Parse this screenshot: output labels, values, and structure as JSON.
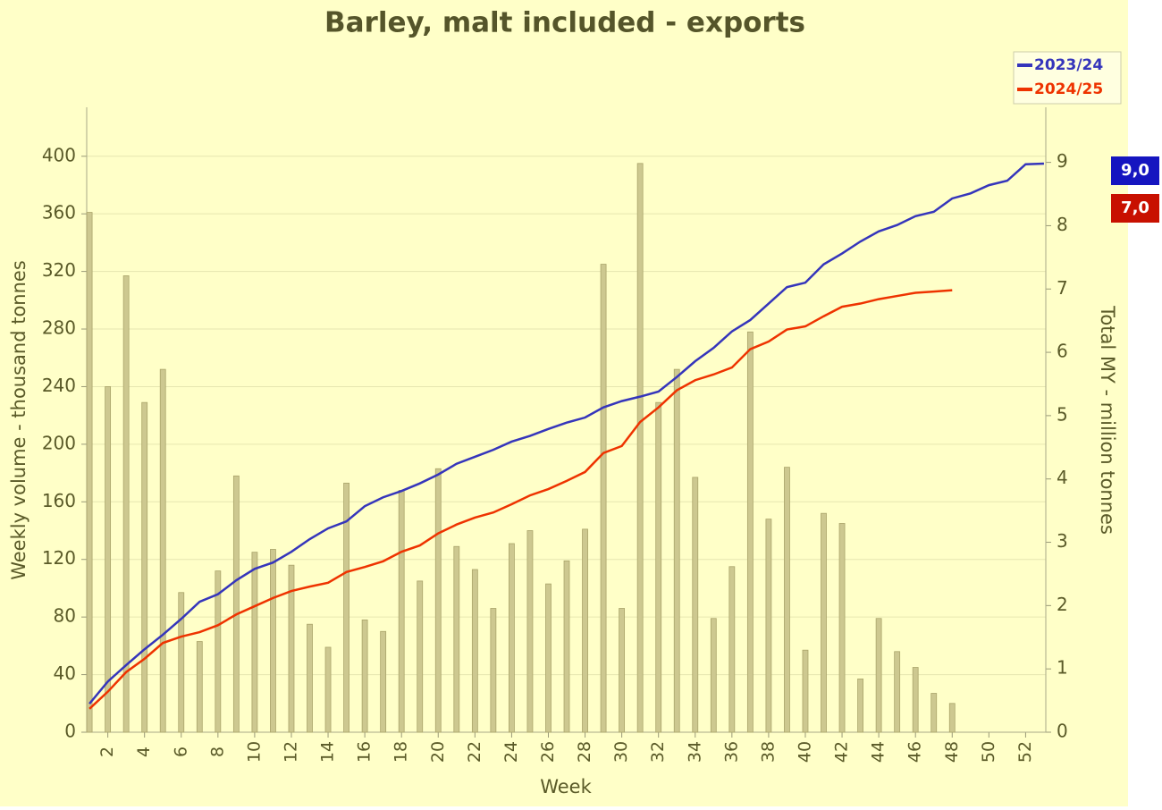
{
  "chart_data": {
    "type": "bar_line",
    "title": "Barley, malt included - exports",
    "xlabel": "Week",
    "ylabel": "Weekly volume - thousand tonnes",
    "y2label": "Total MY - million tonnes",
    "x": [
      1,
      2,
      3,
      4,
      5,
      6,
      7,
      8,
      9,
      10,
      11,
      12,
      13,
      14,
      15,
      16,
      17,
      18,
      19,
      20,
      21,
      22,
      23,
      24,
      25,
      26,
      27,
      28,
      29,
      30,
      31,
      32,
      33,
      34,
      35,
      36,
      37,
      38,
      39,
      40,
      41,
      42,
      43,
      44,
      45,
      46,
      47,
      48,
      49,
      50,
      51,
      52,
      53
    ],
    "xlim": [
      0.85,
      53.1
    ],
    "xticks": [
      2,
      4,
      6,
      8,
      10,
      12,
      14,
      16,
      18,
      20,
      22,
      24,
      26,
      28,
      30,
      32,
      34,
      36,
      38,
      40,
      42,
      44,
      46,
      48,
      50,
      52
    ],
    "ylim": [
      0,
      434
    ],
    "yticks": [
      0,
      40,
      80,
      120,
      160,
      200,
      240,
      280,
      320,
      360,
      400
    ],
    "y2lim": [
      0,
      9.87
    ],
    "y2ticks": [
      0,
      1,
      2,
      3,
      4,
      5,
      6,
      7,
      8,
      9
    ],
    "grid": true,
    "legend": "top-right",
    "bar_color": "#cdc890",
    "bar_values": [
      361,
      240,
      317,
      229,
      252,
      97,
      63,
      112,
      178,
      125,
      127,
      116,
      75,
      59,
      173,
      78,
      70,
      168,
      105,
      183,
      129,
      113,
      86,
      131,
      140,
      103,
      119,
      141,
      325,
      86,
      395,
      229,
      252,
      177,
      79,
      115,
      278,
      148,
      184,
      57,
      152,
      145,
      37,
      79,
      56,
      45,
      27,
      20,
      0,
      0,
      0,
      0,
      null
    ],
    "series": [
      {
        "name": "2023/24",
        "color": "#3535bb",
        "axis": "y2",
        "end_label": "9,0",
        "end_color": "#1515c0",
        "values": [
          0.45,
          0.8,
          1.06,
          1.31,
          1.54,
          1.79,
          2.06,
          2.18,
          2.4,
          2.58,
          2.68,
          2.85,
          3.05,
          3.22,
          3.33,
          3.57,
          3.71,
          3.81,
          3.93,
          4.07,
          4.24,
          4.35,
          4.46,
          4.59,
          4.68,
          4.79,
          4.89,
          4.97,
          5.13,
          5.23,
          5.3,
          5.38,
          5.61,
          5.86,
          6.07,
          6.33,
          6.51,
          6.77,
          7.03,
          7.1,
          7.39,
          7.56,
          7.75,
          7.91,
          8.01,
          8.15,
          8.22,
          8.43,
          8.51,
          8.64,
          8.71,
          8.97,
          8.98
        ]
      },
      {
        "name": "2024/25",
        "color": "#ee3300",
        "axis": "y2",
        "end_label": "7,0",
        "end_color": "#c81000",
        "values": [
          0.37,
          0.64,
          0.95,
          1.16,
          1.41,
          1.51,
          1.58,
          1.69,
          1.86,
          1.99,
          2.12,
          2.23,
          2.3,
          2.36,
          2.53,
          2.61,
          2.7,
          2.85,
          2.95,
          3.14,
          3.28,
          3.39,
          3.47,
          3.6,
          3.74,
          3.84,
          3.97,
          4.11,
          4.41,
          4.52,
          4.9,
          5.13,
          5.4,
          5.56,
          5.65,
          5.76,
          6.05,
          6.17,
          6.36,
          6.41,
          6.57,
          6.72,
          6.77,
          6.84,
          6.89,
          6.94,
          6.96,
          6.98,
          null,
          null,
          null,
          null,
          null
        ]
      }
    ]
  }
}
